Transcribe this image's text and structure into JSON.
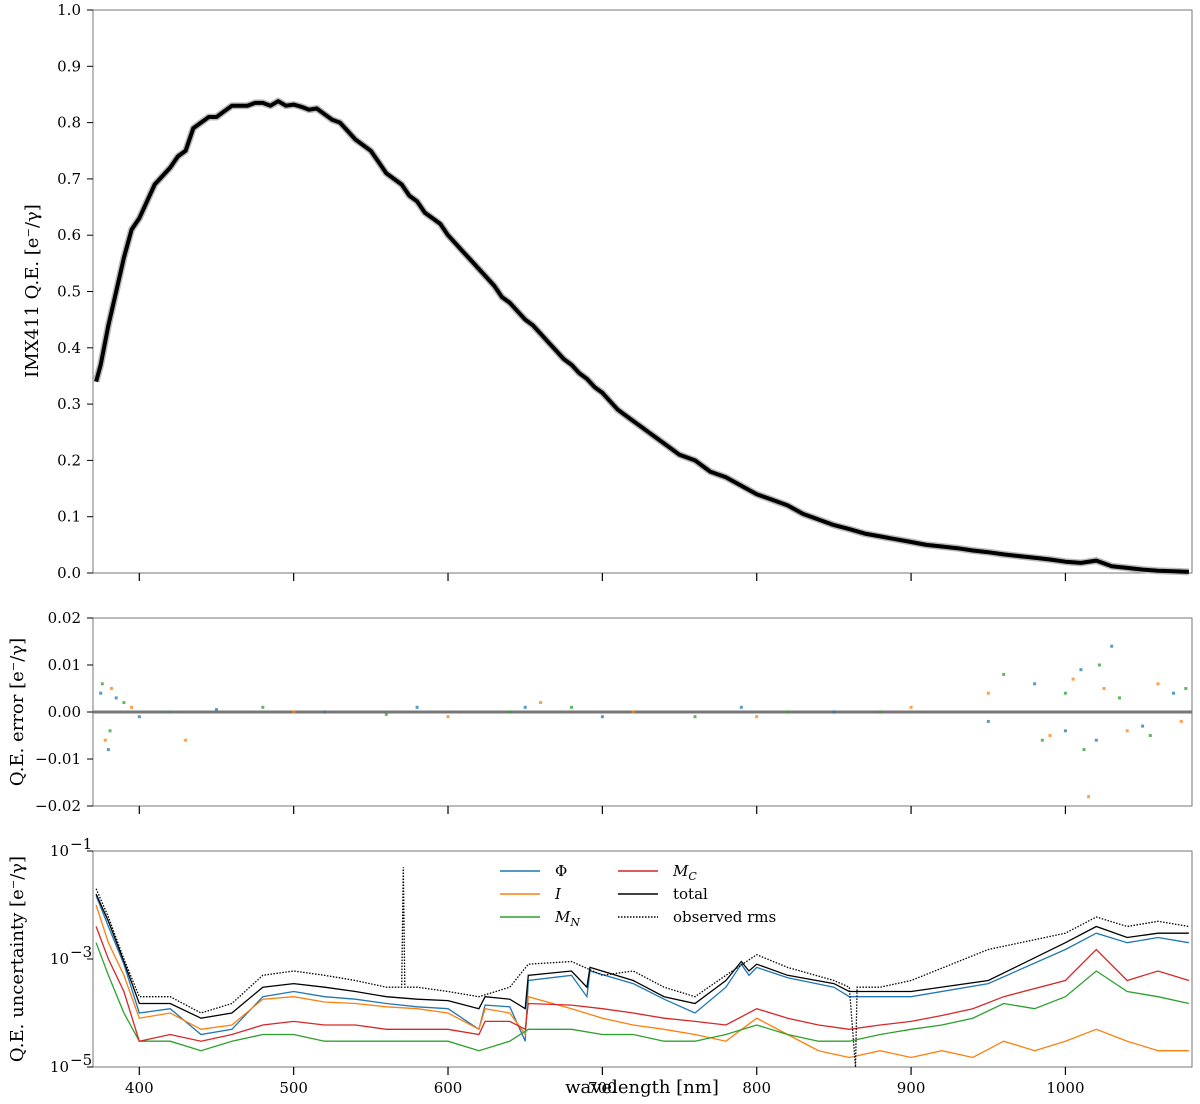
{
  "chart_data": [
    {
      "panel": "top",
      "type": "line",
      "ylabel": "IMX411 Q.E. [e⁻/γ]",
      "xlim": [
        370,
        1082
      ],
      "ylim": [
        0.0,
        1.0
      ],
      "x_ticks": [
        400,
        500,
        600,
        700,
        800,
        900,
        1000
      ],
      "y_ticks": [
        "0.0",
        "0.1",
        "0.2",
        "0.3",
        "0.4",
        "0.5",
        "0.6",
        "0.7",
        "0.8",
        "0.9",
        "1.0"
      ],
      "series": [
        {
          "color": "#000000",
          "x": [
            372,
            375,
            380,
            385,
            390,
            395,
            400,
            410,
            420,
            425,
            430,
            435,
            440,
            445,
            450,
            455,
            460,
            465,
            470,
            475,
            480,
            485,
            490,
            495,
            500,
            505,
            510,
            515,
            520,
            525,
            530,
            535,
            540,
            545,
            550,
            555,
            560,
            565,
            570,
            575,
            580,
            585,
            590,
            595,
            600,
            605,
            610,
            615,
            620,
            625,
            630,
            635,
            640,
            645,
            650,
            655,
            660,
            665,
            670,
            675,
            680,
            685,
            690,
            695,
            700,
            705,
            710,
            715,
            720,
            725,
            730,
            735,
            740,
            745,
            750,
            760,
            770,
            780,
            790,
            800,
            810,
            820,
            830,
            840,
            850,
            860,
            870,
            880,
            890,
            900,
            910,
            920,
            930,
            940,
            950,
            960,
            970,
            980,
            990,
            1000,
            1010,
            1020,
            1030,
            1040,
            1050,
            1060,
            1070,
            1080
          ],
          "y": [
            0.34,
            0.37,
            0.44,
            0.5,
            0.56,
            0.61,
            0.63,
            0.69,
            0.72,
            0.74,
            0.75,
            0.79,
            0.8,
            0.81,
            0.81,
            0.82,
            0.83,
            0.83,
            0.83,
            0.835,
            0.835,
            0.83,
            0.838,
            0.83,
            0.832,
            0.828,
            0.823,
            0.825,
            0.815,
            0.805,
            0.8,
            0.785,
            0.77,
            0.76,
            0.75,
            0.73,
            0.71,
            0.7,
            0.69,
            0.67,
            0.66,
            0.64,
            0.63,
            0.62,
            0.6,
            0.585,
            0.57,
            0.555,
            0.54,
            0.525,
            0.51,
            0.49,
            0.48,
            0.465,
            0.45,
            0.44,
            0.425,
            0.41,
            0.395,
            0.38,
            0.37,
            0.355,
            0.345,
            0.33,
            0.32,
            0.305,
            0.29,
            0.28,
            0.27,
            0.26,
            0.25,
            0.24,
            0.23,
            0.22,
            0.21,
            0.2,
            0.18,
            0.17,
            0.155,
            0.14,
            0.13,
            0.12,
            0.105,
            0.095,
            0.085,
            0.078,
            0.07,
            0.065,
            0.06,
            0.055,
            0.05,
            0.047,
            0.044,
            0.04,
            0.037,
            0.033,
            0.03,
            0.027,
            0.024,
            0.02,
            0.018,
            0.022,
            0.012,
            0.009,
            0.006,
            0.004,
            0.003,
            0.002
          ]
        }
      ]
    },
    {
      "panel": "middle",
      "type": "scatter",
      "ylabel": "Q.E. error [e⁻/γ]",
      "xlim": [
        370,
        1082
      ],
      "ylim": [
        -0.02,
        0.02
      ],
      "x_ticks": [
        400,
        500,
        600,
        700,
        800,
        900,
        1000
      ],
      "y_ticks": [
        "−0.02",
        "−0.01",
        "0.00",
        "0.01",
        "0.02"
      ],
      "series": [
        {
          "color": "#1f77b4",
          "x": [
            375,
            380,
            385,
            400,
            450,
            520,
            580,
            650,
            700,
            790,
            850,
            950,
            980,
            1000,
            1010,
            1020,
            1030,
            1050,
            1070
          ],
          "y": [
            0.004,
            -0.008,
            0.003,
            -0.001,
            0.0005,
            0.0,
            0.001,
            0.001,
            -0.001,
            0.001,
            0.0,
            -0.002,
            0.006,
            -0.004,
            0.009,
            -0.006,
            0.014,
            -0.003,
            0.004
          ]
        },
        {
          "color": "#ff7f0e",
          "x": [
            378,
            382,
            395,
            430,
            500,
            600,
            660,
            720,
            800,
            900,
            950,
            990,
            1005,
            1015,
            1025,
            1040,
            1060,
            1075
          ],
          "y": [
            -0.006,
            0.005,
            0.001,
            -0.006,
            0.0,
            -0.001,
            0.002,
            0.0,
            -0.001,
            0.001,
            0.004,
            -0.005,
            0.007,
            -0.018,
            0.005,
            -0.004,
            0.006,
            -0.002
          ]
        },
        {
          "color": "#2ca02c",
          "x": [
            376,
            381,
            390,
            420,
            480,
            560,
            640,
            680,
            760,
            820,
            880,
            960,
            985,
            1000,
            1012,
            1022,
            1035,
            1055,
            1078
          ],
          "y": [
            0.006,
            -0.004,
            0.002,
            0.0,
            0.001,
            -0.0005,
            0.0,
            0.001,
            -0.001,
            0.0,
            0.0,
            0.008,
            -0.006,
            0.004,
            -0.008,
            0.01,
            0.003,
            -0.005,
            0.005
          ]
        }
      ]
    },
    {
      "panel": "bottom",
      "type": "line",
      "yscale": "log",
      "xlabel": "wavelength [nm]",
      "ylabel": "Q.E. uncertainty [e⁻/γ]",
      "xlim": [
        370,
        1082
      ],
      "ylim": [
        1e-05,
        0.1
      ],
      "x_ticks": [
        "400",
        "500",
        "600",
        "700",
        "800",
        "900",
        "1000"
      ],
      "y_ticks": [
        {
          "base": "10",
          "exp": "−5",
          "value": 1e-05
        },
        {
          "base": "10",
          "exp": "−3",
          "value": 0.001
        },
        {
          "base": "10",
          "exp": "−1",
          "value": 0.1
        }
      ],
      "legend_position": "top-center",
      "series": [
        {
          "name": "Φ",
          "color": "#1f77b4",
          "style": "solid",
          "x": [
            372,
            380,
            390,
            400,
            420,
            440,
            460,
            480,
            500,
            520,
            540,
            560,
            580,
            600,
            620,
            624,
            640,
            650,
            652,
            680,
            690,
            692,
            720,
            740,
            760,
            780,
            790,
            795,
            800,
            820,
            850,
            860,
            900,
            950,
            1000,
            1020,
            1040,
            1060,
            1080
          ],
          "y": [
            0.015,
            0.004,
            0.0008,
            0.0001,
            0.00012,
            4e-05,
            5e-05,
            0.0002,
            0.00025,
            0.0002,
            0.00018,
            0.00015,
            0.00013,
            0.00012,
            5e-05,
            0.00014,
            0.00013,
            3e-05,
            0.0004,
            0.0005,
            0.0002,
            0.0006,
            0.00035,
            0.00018,
            0.0001,
            0.0003,
            0.0008,
            0.0005,
            0.0007,
            0.00045,
            0.0003,
            0.0002,
            0.0002,
            0.00035,
            0.0015,
            0.003,
            0.002,
            0.0025,
            0.002
          ]
        },
        {
          "name": "I",
          "color": "#ff7f0e",
          "style": "solid",
          "x": [
            372,
            380,
            390,
            400,
            420,
            440,
            460,
            480,
            500,
            520,
            540,
            560,
            580,
            600,
            620,
            624,
            640,
            650,
            652,
            680,
            700,
            720,
            740,
            760,
            780,
            800,
            820,
            840,
            860,
            880,
            900,
            920,
            940,
            960,
            980,
            1000,
            1020,
            1040,
            1060,
            1080
          ],
          "y": [
            0.01,
            0.002,
            0.0005,
            8e-05,
            0.0001,
            5e-05,
            6e-05,
            0.00018,
            0.0002,
            0.00016,
            0.00015,
            0.00013,
            0.00012,
            0.0001,
            5e-05,
            0.00012,
            0.0001,
            4e-05,
            0.0002,
            0.00012,
            8e-05,
            6e-05,
            5e-05,
            4e-05,
            3e-05,
            8e-05,
            4e-05,
            2e-05,
            1.5e-05,
            2e-05,
            1.5e-05,
            2e-05,
            1.5e-05,
            3e-05,
            2e-05,
            3e-05,
            5e-05,
            3e-05,
            2e-05,
            2e-05
          ]
        },
        {
          "name": "M_N",
          "color": "#2ca02c",
          "style": "solid",
          "x": [
            372,
            380,
            390,
            400,
            420,
            440,
            460,
            480,
            500,
            520,
            540,
            560,
            580,
            600,
            620,
            640,
            652,
            680,
            700,
            720,
            740,
            760,
            780,
            800,
            820,
            840,
            860,
            880,
            900,
            920,
            940,
            960,
            980,
            1000,
            1020,
            1040,
            1060,
            1080
          ],
          "y": [
            0.002,
            0.0005,
            0.0001,
            3e-05,
            3e-05,
            2e-05,
            3e-05,
            4e-05,
            4e-05,
            3e-05,
            3e-05,
            3e-05,
            3e-05,
            3e-05,
            2e-05,
            3e-05,
            5e-05,
            5e-05,
            4e-05,
            4e-05,
            3e-05,
            3e-05,
            4e-05,
            6e-05,
            4e-05,
            3e-05,
            3e-05,
            4e-05,
            5e-05,
            6e-05,
            8e-05,
            0.00015,
            0.00012,
            0.0002,
            0.0006,
            0.00025,
            0.0002,
            0.00015
          ]
        },
        {
          "name": "M_C",
          "color": "#d62728",
          "style": "solid",
          "x": [
            372,
            380,
            390,
            400,
            420,
            440,
            460,
            480,
            500,
            520,
            540,
            560,
            580,
            600,
            620,
            624,
            640,
            650,
            652,
            680,
            700,
            720,
            740,
            760,
            780,
            800,
            820,
            840,
            860,
            880,
            900,
            920,
            940,
            960,
            1000,
            1020,
            1040,
            1060,
            1080
          ],
          "y": [
            0.004,
            0.001,
            0.00025,
            3e-05,
            4e-05,
            3e-05,
            4e-05,
            6e-05,
            7e-05,
            6e-05,
            6e-05,
            5e-05,
            5e-05,
            5e-05,
            4e-05,
            7e-05,
            7e-05,
            5e-05,
            0.00015,
            0.00014,
            0.00012,
            0.0001,
            8e-05,
            7e-05,
            6e-05,
            0.00012,
            8e-05,
            6e-05,
            5e-05,
            6e-05,
            7e-05,
            9e-05,
            0.00012,
            0.0002,
            0.0004,
            0.0015,
            0.0004,
            0.0006,
            0.0004
          ]
        },
        {
          "name": "total",
          "color": "#000000",
          "style": "solid",
          "x": [
            372,
            380,
            390,
            400,
            420,
            440,
            460,
            480,
            500,
            520,
            540,
            560,
            580,
            600,
            620,
            624,
            640,
            650,
            652,
            680,
            690,
            692,
            720,
            740,
            760,
            780,
            790,
            795,
            800,
            820,
            850,
            860,
            900,
            950,
            1000,
            1020,
            1040,
            1060,
            1080
          ],
          "y": [
            0.016,
            0.005,
            0.0009,
            0.00015,
            0.00015,
            8e-05,
            0.0001,
            0.0003,
            0.00035,
            0.0003,
            0.00025,
            0.0002,
            0.00018,
            0.00017,
            0.00012,
            0.0002,
            0.00018,
            0.00012,
            0.0005,
            0.0006,
            0.0003,
            0.0007,
            0.0004,
            0.0002,
            0.00015,
            0.0004,
            0.0009,
            0.0006,
            0.0008,
            0.0005,
            0.00035,
            0.00025,
            0.00025,
            0.0004,
            0.002,
            0.004,
            0.0025,
            0.003,
            0.003
          ]
        },
        {
          "name": "observed rms",
          "color": "#000000",
          "style": "dotted",
          "x": [
            372,
            380,
            390,
            400,
            420,
            440,
            460,
            480,
            500,
            520,
            540,
            560,
            570,
            571,
            572,
            580,
            600,
            620,
            640,
            652,
            680,
            700,
            720,
            740,
            760,
            780,
            800,
            820,
            850,
            860,
            864,
            865,
            866,
            880,
            900,
            950,
            1000,
            1020,
            1040,
            1060,
            1080
          ],
          "y": [
            0.02,
            0.006,
            0.001,
            0.0002,
            0.0002,
            0.0001,
            0.00015,
            0.0005,
            0.0006,
            0.0005,
            0.0004,
            0.0003,
            0.0003,
            0.05,
            0.0003,
            0.0003,
            0.00025,
            0.0002,
            0.0003,
            0.0008,
            0.0009,
            0.0005,
            0.0006,
            0.0003,
            0.0002,
            0.0005,
            0.0012,
            0.0007,
            0.0004,
            0.0003,
            1e-05,
            0.0003,
            0.0003,
            0.0003,
            0.0004,
            0.0015,
            0.003,
            0.006,
            0.004,
            0.005,
            0.004
          ]
        }
      ]
    }
  ]
}
